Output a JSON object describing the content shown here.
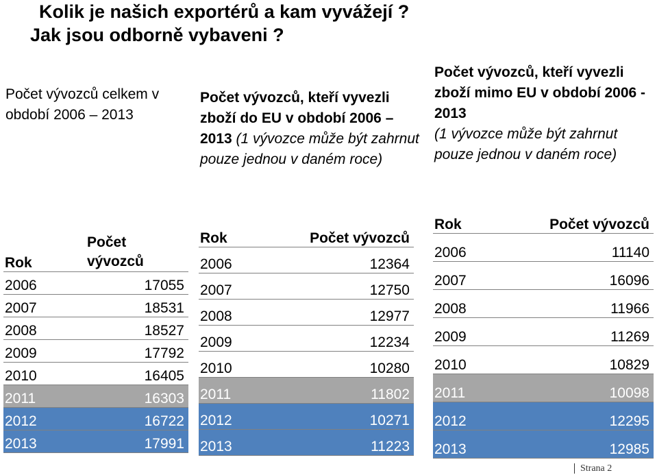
{
  "title": {
    "line1": "Kolik je našich exportérů a kam vyvážejí ?",
    "line2": "Jak jsou odborně vybaveni ?"
  },
  "col1": {
    "desc": "Počet vývozců celkem v období 2006 – 2013",
    "head_year": "Rok",
    "head_count_1": "Počet",
    "head_count_2": "vývozců",
    "rows": [
      [
        "2006",
        "17055"
      ],
      [
        "2007",
        "18531"
      ],
      [
        "2008",
        "18527"
      ],
      [
        "2009",
        "17792"
      ],
      [
        "2010",
        "16405"
      ],
      [
        "2011",
        "16303"
      ],
      [
        "2012",
        "16722"
      ],
      [
        "2013",
        "17991"
      ]
    ]
  },
  "col2": {
    "desc_bold": "Počet vývozců, kteří vyvezli zboží do EU v období 2006 – 2013",
    "desc_italic": " (1 vývozce může být zahrnut pouze jednou v daném roce)",
    "head_year": "Rok",
    "head_count": "Počet vývozců",
    "rows": [
      [
        "2006",
        "12364"
      ],
      [
        "2007",
        "12750"
      ],
      [
        "2008",
        "12977"
      ],
      [
        "2009",
        "12234"
      ],
      [
        "2010",
        "10280"
      ],
      [
        "2011",
        "11802"
      ],
      [
        "2012",
        "10271"
      ],
      [
        "2013",
        "11223"
      ]
    ]
  },
  "col3": {
    "desc_bold": "Počet vývozců, kteří vyvezli zboží mimo EU v období 2006 - 2013",
    "desc_italic": "(1 vývozce může být zahrnut pouze jednou v daném roce)",
    "head_year": "Rok",
    "head_count": "Počet vývozců",
    "rows": [
      [
        "2006",
        "11140"
      ],
      [
        "2007",
        "16096"
      ],
      [
        "2008",
        "11966"
      ],
      [
        "2009",
        "11269"
      ],
      [
        "2010",
        "10829"
      ],
      [
        "2011",
        "10098"
      ],
      [
        "2012",
        "12295"
      ],
      [
        "2013",
        "12985"
      ]
    ]
  },
  "footer": "Strana 2",
  "colors": {
    "grey_row": "#a6a6a6",
    "blue_row": "#4f81bd"
  }
}
